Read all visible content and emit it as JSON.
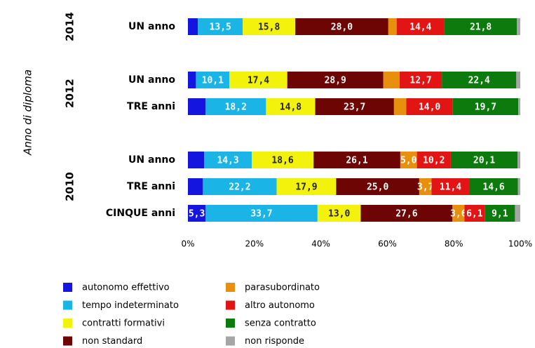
{
  "chart_data": {
    "type": "stacked-bar-horizontal",
    "y_axis_label": "Anno di diploma",
    "groups": [
      {
        "label": "2014",
        "categories": [
          "UN anno"
        ]
      },
      {
        "label": "2012",
        "categories": [
          "UN anno",
          "TRE anni"
        ]
      },
      {
        "label": "2010",
        "categories": [
          "UN anno",
          "TRE anni",
          "CINQUE anni"
        ]
      }
    ],
    "xlim": [
      0,
      100
    ],
    "xticks": [
      {
        "value": 0,
        "label": "0%"
      },
      {
        "value": 20,
        "label": "20%"
      },
      {
        "value": 40,
        "label": "40%"
      },
      {
        "value": 60,
        "label": "60%"
      },
      {
        "value": 80,
        "label": "80%"
      },
      {
        "value": 100,
        "label": "100%"
      }
    ],
    "legend": "bottom",
    "series": [
      {
        "name": "autonomo effettivo",
        "color": "#1515e0",
        "label_color": "#ffffff",
        "values": [
          3.0,
          2.4,
          5.3,
          4.9,
          4.5,
          5.3
        ],
        "value_labels": [
          null,
          null,
          null,
          null,
          null,
          "5,3"
        ]
      },
      {
        "name": "tempo indeterminato",
        "color": "#1ab4e6",
        "label_color": "#ffffff",
        "values": [
          13.5,
          10.1,
          18.2,
          14.3,
          22.2,
          33.7
        ],
        "value_labels": [
          "13,5",
          "10,1",
          "18,2",
          "14,3",
          "22,2",
          "33,7"
        ]
      },
      {
        "name": "contratti formativi",
        "color": "#f2f20c",
        "label_color": "#222222",
        "values": [
          15.8,
          17.4,
          14.8,
          18.6,
          17.9,
          13.0
        ],
        "value_labels": [
          "15,8",
          "17,4",
          "14,8",
          "18,6",
          "17,9",
          "13,0"
        ]
      },
      {
        "name": "non standard",
        "color": "#6e0505",
        "label_color": "#ffffff",
        "values": [
          28.0,
          28.9,
          23.7,
          26.1,
          25.0,
          27.6
        ],
        "value_labels": [
          "28,0",
          "28,9",
          "23,7",
          "26,1",
          "25,0",
          "27,6"
        ]
      },
      {
        "name": "parasubordinato",
        "color": "#e8900e",
        "label_color": "#ffffff",
        "values": [
          2.5,
          4.9,
          3.7,
          5.0,
          3.7,
          3.6
        ],
        "value_labels": [
          null,
          null,
          null,
          "5,0",
          "3,7",
          "3,6"
        ]
      },
      {
        "name": "altro autonomo",
        "color": "#e21414",
        "label_color": "#ffffff",
        "values": [
          14.4,
          12.7,
          14.0,
          10.2,
          11.4,
          6.1
        ],
        "value_labels": [
          "14,4",
          "12,7",
          "14,0",
          "10,2",
          "11,4",
          "6,1"
        ]
      },
      {
        "name": "senza contratto",
        "color": "#0c7a0c",
        "label_color": "#ffffff",
        "values": [
          21.8,
          22.4,
          19.7,
          20.1,
          14.6,
          9.1
        ],
        "value_labels": [
          "21,8",
          "22,4",
          "19,7",
          "20,1",
          "14,6",
          "9,1"
        ]
      },
      {
        "name": "non risponde",
        "color": "#a6a6a6",
        "label_color": "#ffffff",
        "values": [
          1.0,
          1.2,
          0.6,
          0.8,
          0.7,
          1.6
        ],
        "value_labels": [
          null,
          null,
          null,
          null,
          null,
          null
        ]
      }
    ]
  }
}
